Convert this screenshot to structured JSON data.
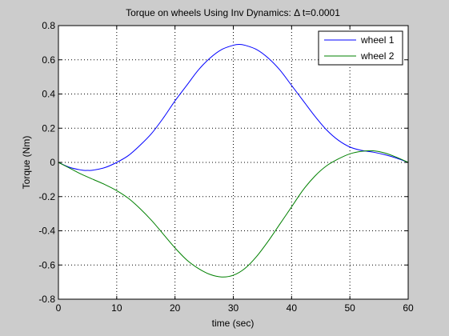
{
  "chart_data": {
    "type": "line",
    "title": "Torque on wheels Using Inv Dynamics: Δ t=0.0001",
    "xlabel": "time (sec)",
    "ylabel": "Torque (Nm)",
    "xlim": [
      0,
      60
    ],
    "ylim": [
      -0.8,
      0.8
    ],
    "xticks": [
      0,
      10,
      20,
      30,
      40,
      50,
      60
    ],
    "yticks": [
      -0.8,
      -0.6,
      -0.4,
      -0.2,
      0,
      0.2,
      0.4,
      0.6,
      0.8
    ],
    "xtick_labels": [
      "0",
      "10",
      "20",
      "30",
      "40",
      "50",
      "60"
    ],
    "ytick_labels": [
      "-0.8",
      "-0.6",
      "-0.4",
      "-0.2",
      "0",
      "0.2",
      "0.4",
      "0.6",
      "0.8"
    ],
    "grid": true,
    "legend_position": "top-right",
    "series": [
      {
        "name": "wheel 1",
        "color": "#0000ff",
        "x": [
          0,
          2,
          4,
          5,
          6,
          8,
          10,
          12,
          14,
          16,
          18,
          20,
          22,
          24,
          26,
          28,
          30,
          31,
          32,
          34,
          36,
          38,
          40,
          42,
          44,
          46,
          48,
          50,
          52,
          54,
          56,
          58,
          60
        ],
        "y": [
          0,
          -0.03,
          -0.045,
          -0.047,
          -0.045,
          -0.03,
          0.0,
          0.04,
          0.1,
          0.17,
          0.26,
          0.36,
          0.45,
          0.54,
          0.61,
          0.66,
          0.685,
          0.69,
          0.685,
          0.66,
          0.61,
          0.54,
          0.45,
          0.36,
          0.27,
          0.19,
          0.13,
          0.09,
          0.07,
          0.06,
          0.045,
          0.025,
          0.0
        ]
      },
      {
        "name": "wheel 2",
        "color": "#008000",
        "x": [
          0,
          2,
          4,
          6,
          8,
          10,
          12,
          14,
          16,
          18,
          20,
          22,
          24,
          26,
          28,
          30,
          32,
          34,
          36,
          38,
          40,
          42,
          44,
          46,
          48,
          50,
          52,
          54,
          56,
          58,
          60
        ],
        "y": [
          0,
          -0.035,
          -0.07,
          -0.1,
          -0.13,
          -0.165,
          -0.21,
          -0.27,
          -0.34,
          -0.42,
          -0.5,
          -0.57,
          -0.62,
          -0.655,
          -0.67,
          -0.66,
          -0.62,
          -0.55,
          -0.46,
          -0.36,
          -0.26,
          -0.16,
          -0.08,
          -0.02,
          0.02,
          0.05,
          0.065,
          0.068,
          0.055,
          0.03,
          0.0
        ]
      }
    ]
  }
}
